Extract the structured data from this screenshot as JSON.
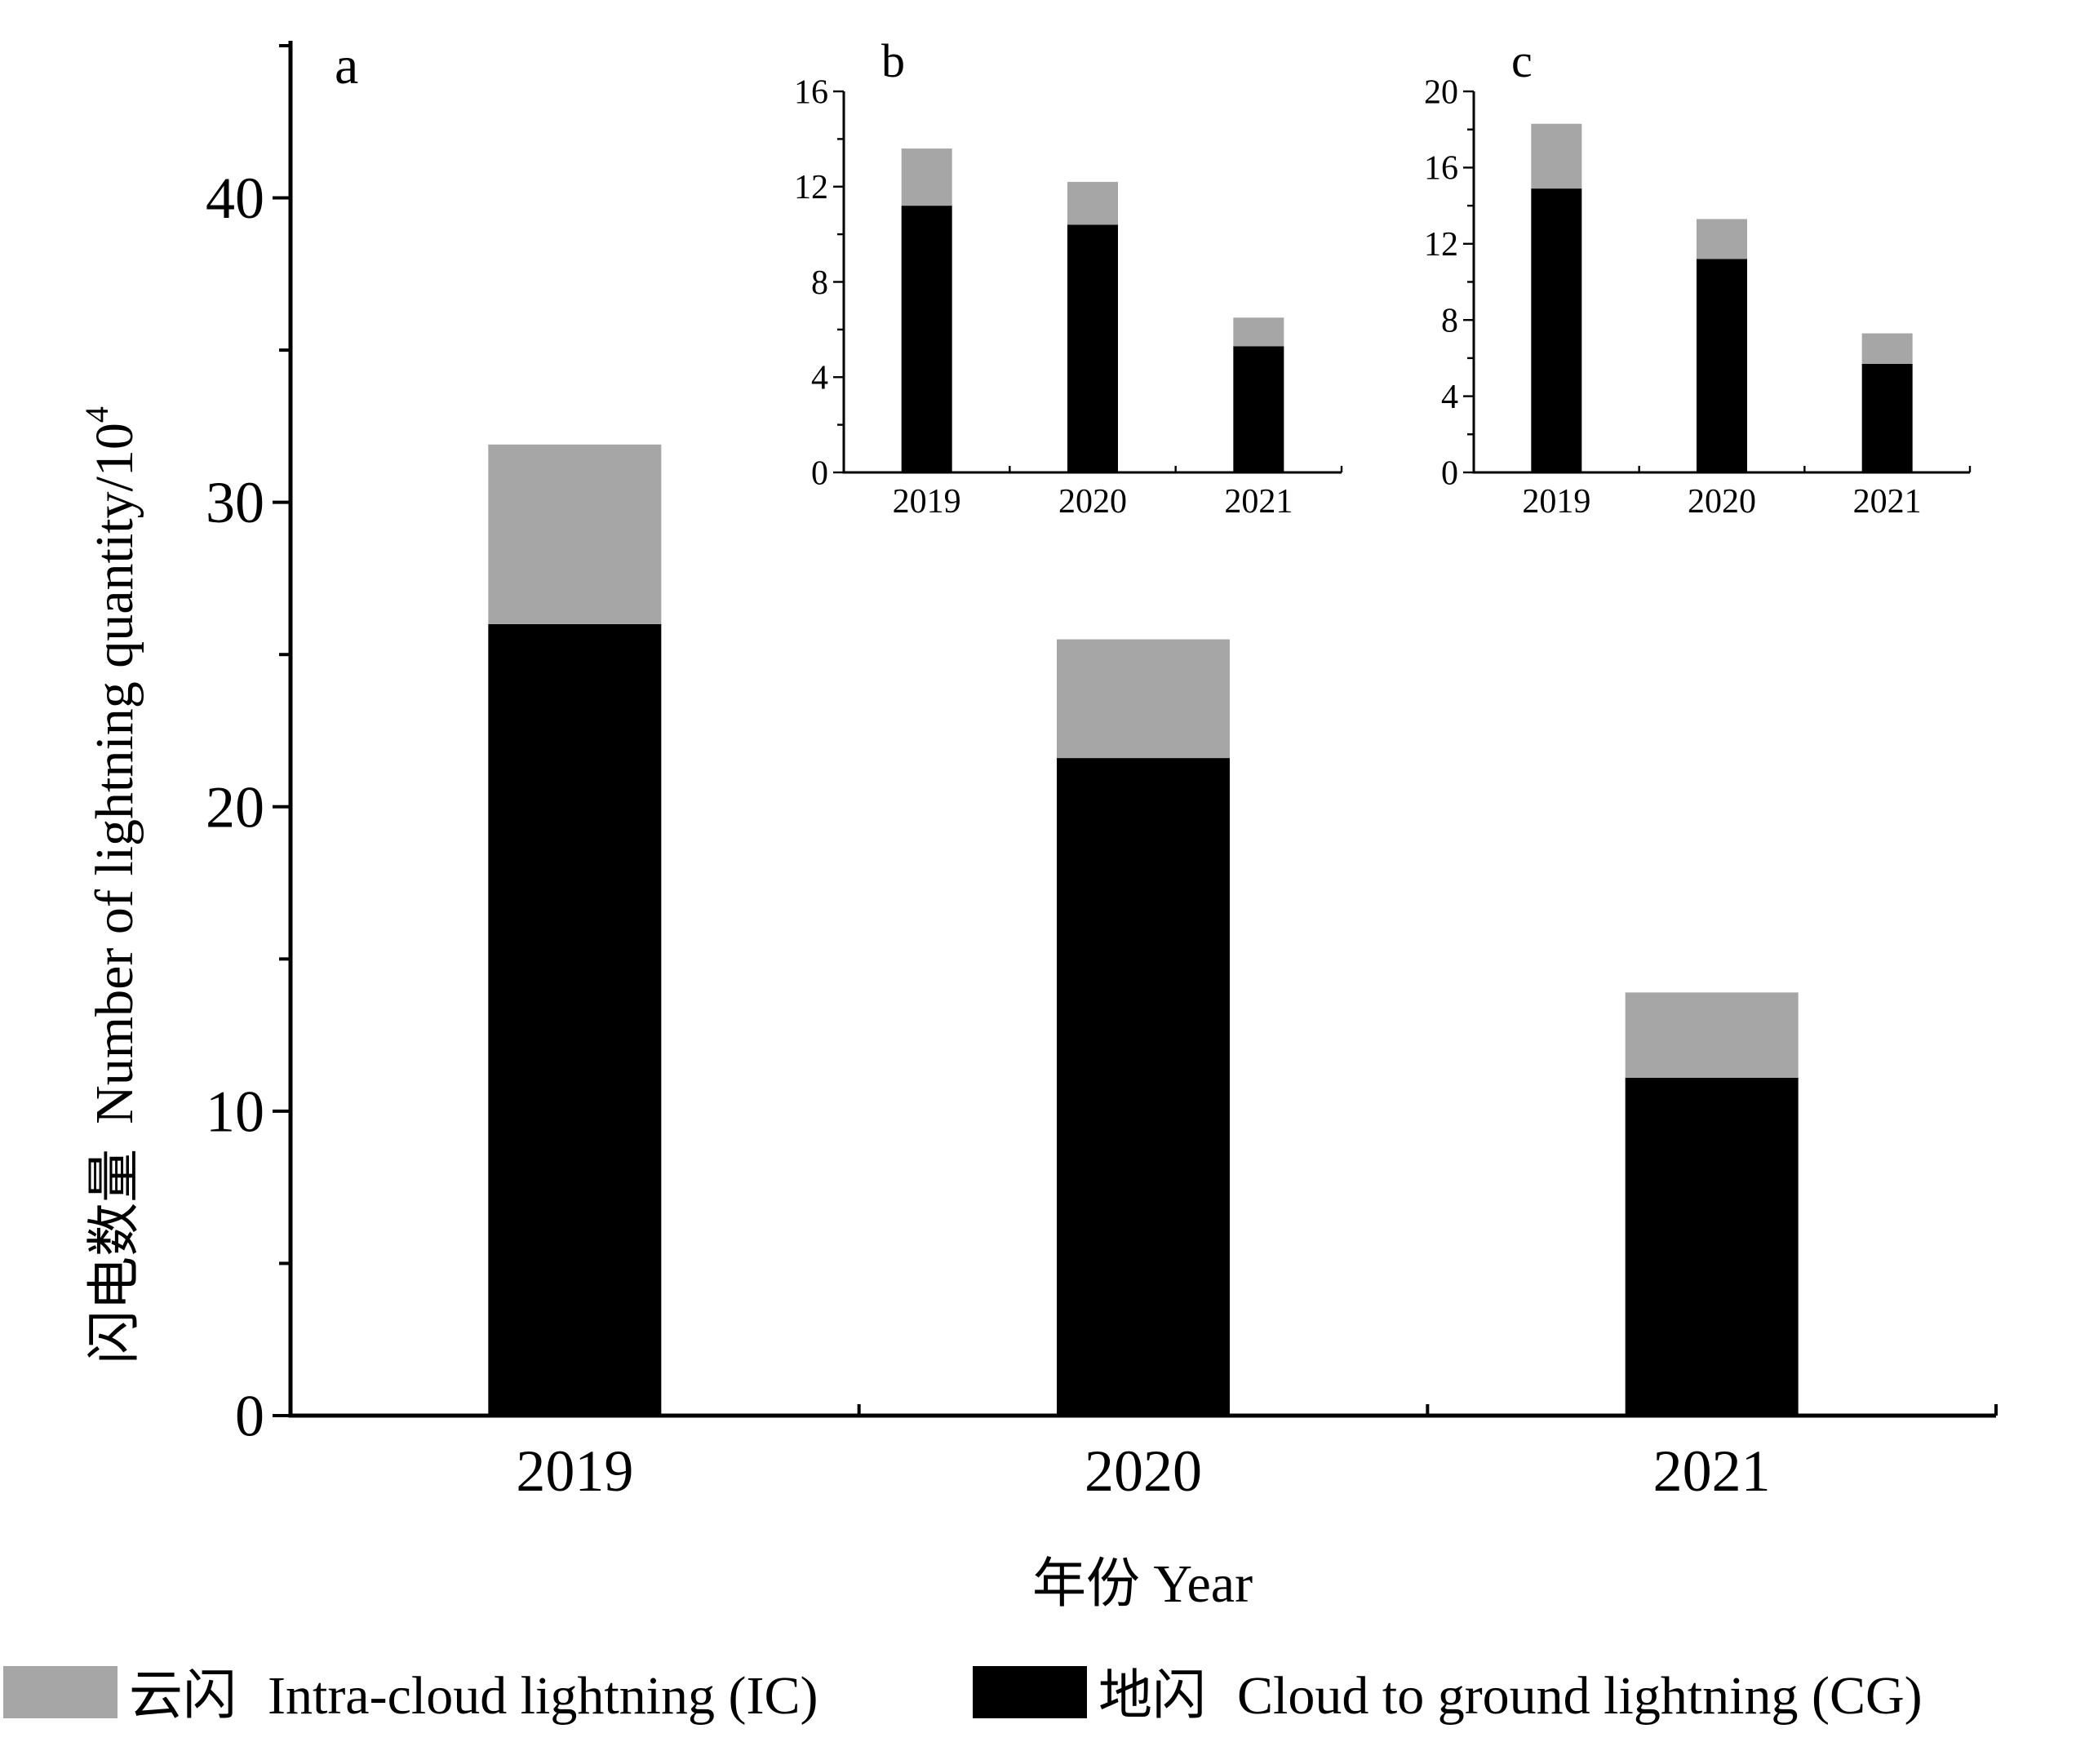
{
  "chart_data": [
    {
      "panel": "a",
      "type": "bar",
      "stacked": true,
      "categories": [
        "2019",
        "2020",
        "2021"
      ],
      "series": [
        {
          "name": "Cloud to ground lightning (CG)",
          "color": "#000000",
          "values": [
            26.0,
            21.6,
            11.1
          ]
        },
        {
          "name": "Intra-cloud lightning (IC)",
          "color": "#a6a6a6",
          "values": [
            5.9,
            3.9,
            2.8
          ]
        }
      ],
      "ylim": [
        0,
        45
      ],
      "yticks": [
        0,
        10,
        20,
        30,
        40
      ],
      "ylabel_cn": "闪电数量",
      "ylabel_en": "Number of lightning quantity/10",
      "ylabel_sup": "4",
      "xlabel": "年份 Year"
    },
    {
      "panel": "b",
      "type": "bar",
      "stacked": true,
      "categories": [
        "2019",
        "2020",
        "2021"
      ],
      "series": [
        {
          "name": "Cloud to ground lightning (CG)",
          "color": "#000000",
          "values": [
            11.2,
            10.4,
            5.3
          ]
        },
        {
          "name": "Intra-cloud lightning (IC)",
          "color": "#a6a6a6",
          "values": [
            2.4,
            1.8,
            1.2
          ]
        }
      ],
      "ylim": [
        0,
        16
      ],
      "yticks": [
        0,
        4,
        8,
        12,
        16
      ]
    },
    {
      "panel": "c",
      "type": "bar",
      "stacked": true,
      "categories": [
        "2019",
        "2020",
        "2021"
      ],
      "series": [
        {
          "name": "Cloud to ground lightning (CG)",
          "color": "#000000",
          "values": [
            14.9,
            11.2,
            5.7
          ]
        },
        {
          "name": "Intra-cloud lightning (IC)",
          "color": "#a6a6a6",
          "values": [
            3.4,
            2.1,
            1.6
          ]
        }
      ],
      "ylim": [
        0,
        20
      ],
      "yticks": [
        0,
        4,
        8,
        12,
        16,
        20
      ]
    }
  ],
  "legend": [
    {
      "label_cn": "云闪",
      "label_en": "Intra-cloud lightning (IC)",
      "color": "#a6a6a6"
    },
    {
      "label_cn": "地闪",
      "label_en": "Cloud to ground lightning (CG)",
      "color": "#000000"
    }
  ]
}
